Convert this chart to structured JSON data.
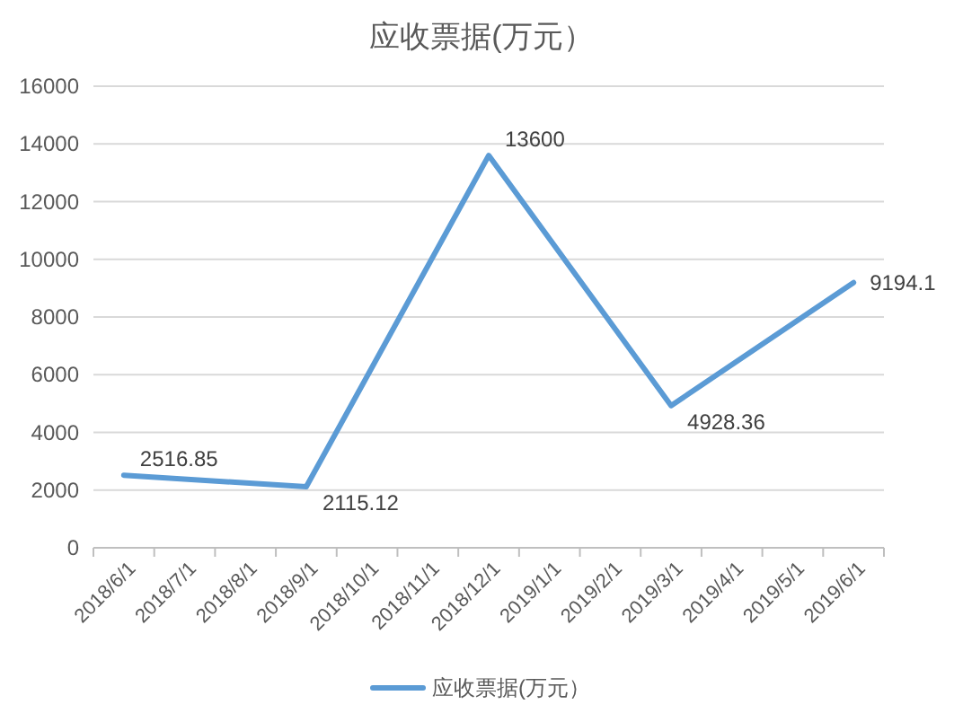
{
  "chart_data": {
    "type": "line",
    "title": "应收票据(万元）",
    "categories": [
      "2018/6/1",
      "2018/7/1",
      "2018/8/1",
      "2018/9/1",
      "2018/10/1",
      "2018/11/1",
      "2018/12/1",
      "2019/1/1",
      "2019/2/1",
      "2019/3/1",
      "2019/4/1",
      "2019/5/1",
      "2019/6/1"
    ],
    "series": [
      {
        "name": "应收票据(万元）",
        "color": "#5b9bd5",
        "x": [
          "2018/6/1",
          "2018/9/1",
          "2018/12/1",
          "2019/3/1",
          "2019/6/1"
        ],
        "values": [
          2516.85,
          2115.12,
          13600,
          4928.36,
          9194.1
        ]
      }
    ],
    "ylim": [
      0,
      16000
    ],
    "yticks": [
      0,
      2000,
      4000,
      6000,
      8000,
      10000,
      12000,
      14000,
      16000
    ],
    "grid": "y",
    "data_labels": true,
    "legend": "bottom"
  }
}
